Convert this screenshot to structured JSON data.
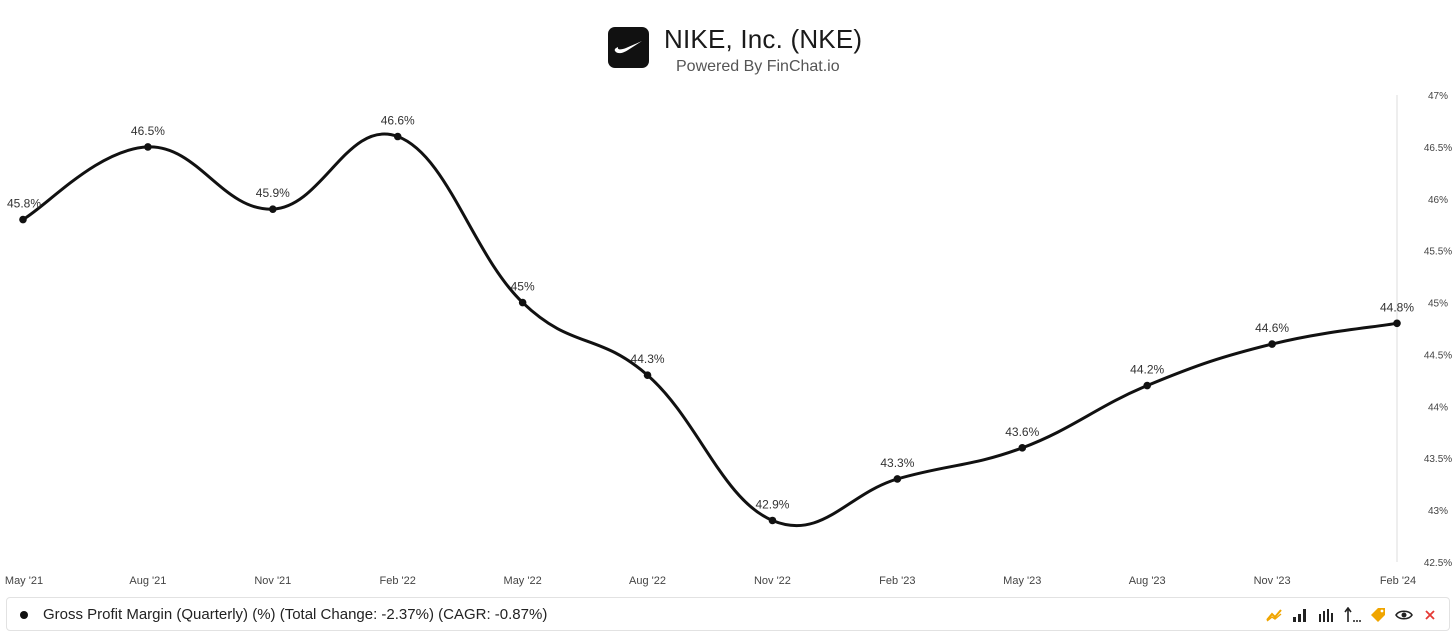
{
  "header": {
    "title": "NIKE, Inc. (NKE)",
    "subtitle": "Powered By FinChat.io"
  },
  "chart_data": {
    "type": "line",
    "categories": [
      "May '21",
      "Aug '21",
      "Nov '21",
      "Feb '22",
      "May '22",
      "Aug '22",
      "Nov '22",
      "Feb '23",
      "May '23",
      "Aug '23",
      "Nov '23",
      "Feb '24"
    ],
    "series": [
      {
        "name": "Gross Profit Margin (Quarterly) (%)",
        "values": [
          45.8,
          46.5,
          45.9,
          46.6,
          45.0,
          44.3,
          42.9,
          43.3,
          43.6,
          44.2,
          44.6,
          44.8
        ],
        "labels": [
          "45.8%",
          "46.5%",
          "45.9%",
          "46.6%",
          "45%",
          "44.3%",
          "42.9%",
          "43.3%",
          "43.6%",
          "44.2%",
          "44.6%",
          "44.8%"
        ],
        "color": "#111111"
      }
    ],
    "y_ticks": [
      "47%",
      "46.5%",
      "46%",
      "45.5%",
      "45%",
      "44.5%",
      "44%",
      "43.5%",
      "43%",
      "42.5%"
    ],
    "ylim": [
      42.5,
      47
    ],
    "y_axis_side": "right",
    "grid": false
  },
  "legend": {
    "text": "Gross Profit Margin (Quarterly) (%) (Total Change: -2.37%) (CAGR: -0.87%)"
  },
  "toolbar": {
    "icons": [
      "line-chart-icon",
      "bar-chart-icon",
      "grouped-bar-chart-icon",
      "sort-icon",
      "tag-icon",
      "eye-icon",
      "close-icon"
    ],
    "colors": {
      "accent": "#f0a500",
      "close": "#e53935"
    }
  }
}
